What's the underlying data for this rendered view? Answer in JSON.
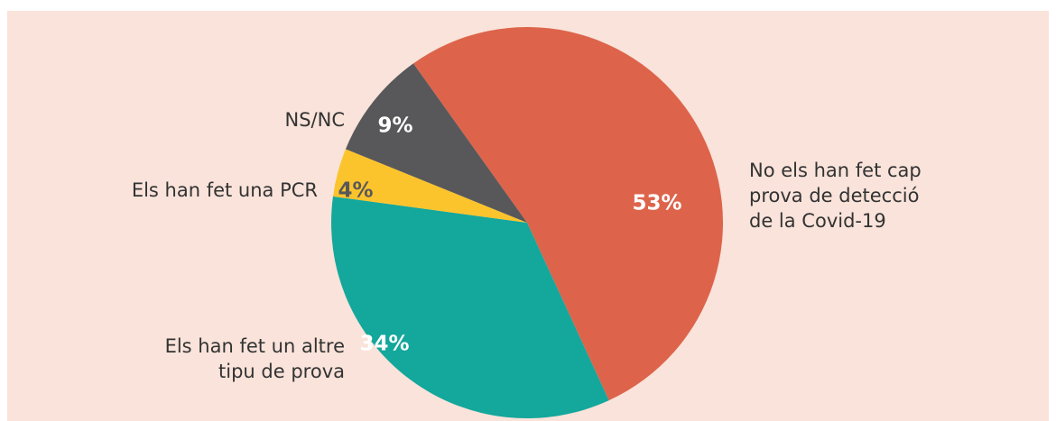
{
  "chart_data": {
    "type": "pie",
    "categories": [
      [
        "No els han fet cap",
        "prova de detecció",
        "de la Covid-19"
      ],
      [
        "Els han fet un altre",
        "tipu de prova"
      ],
      [
        "Els han fet una PCR"
      ],
      [
        "NS/NC"
      ]
    ],
    "values": [
      53,
      34,
      4,
      9
    ],
    "value_labels": [
      "53%",
      "34%",
      "4%",
      "9%"
    ],
    "colors": [
      "#dd644b",
      "#14a79c",
      "#fcc42c",
      "#58585a"
    ]
  }
}
